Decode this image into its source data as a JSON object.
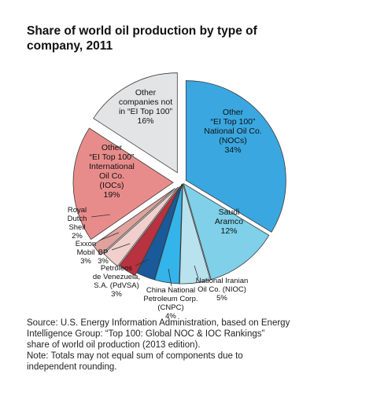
{
  "title_lines": [
    "Share of world oil production by type of",
    "company, 2011"
  ],
  "chart_data": {
    "type": "pie",
    "title": "Share of world oil production by type of company, 2011",
    "slices": [
      {
        "label_lines": [
          "Other",
          "“EI Top 100”",
          "National Oil Co.",
          "(NOCs)",
          "34%"
        ],
        "label": "Other “EI Top 100” National Oil Co. (NOCs)",
        "value": 34,
        "color": "#3aa7e0"
      },
      {
        "label_lines": [
          "Saudi",
          "Aramco",
          "12%"
        ],
        "label": "Saudi Aramco",
        "value": 12,
        "color": "#7fd0e8"
      },
      {
        "label_lines": [
          "National Iranian",
          "Oil Co. (NIOC)",
          "5%"
        ],
        "label": "National Iranian Oil Co. (NIOC)",
        "value": 5,
        "color": "#b8e2ed"
      },
      {
        "label_lines": [
          "China National",
          "Petroleum Corp.",
          "(CNPC)",
          "4%"
        ],
        "label": "China National Petroleum Corp. (CNPC)",
        "value": 4,
        "color": "#33b4ea"
      },
      {
        "label_lines": [
          "Petróleos",
          "de Venezuela,",
          "S.A. (PdVSA)",
          "3%"
        ],
        "label": "Petróleos de Venezuela, S.A. (PdVSA)",
        "value": 3,
        "color": "#1a5a9a"
      },
      {
        "label_lines": [
          "BP",
          "3%"
        ],
        "label": "BP",
        "value": 3,
        "color": "#b8323f"
      },
      {
        "label_lines": [
          "Exxon",
          "Mobil",
          "3%"
        ],
        "label": "Exxon Mobil",
        "value": 3,
        "color": "#f0cfcc"
      },
      {
        "label_lines": [
          "Royal",
          "Dutch",
          "Shell",
          "2%"
        ],
        "label": "Royal Dutch Shell",
        "value": 2,
        "color": "#dfa29c"
      },
      {
        "label_lines": [
          "Other",
          "“EI Top 100”",
          "International",
          "Oil Co.",
          "(IOCs)",
          "19%"
        ],
        "label": "Other “EI Top 100” International Oil Co. (IOCs)",
        "value": 19,
        "color": "#e88c8b"
      },
      {
        "label_lines": [
          "Other",
          "companies not",
          "in “EI Top 100”",
          "16%"
        ],
        "label": "Other companies not in “EI Top 100”",
        "value": 16,
        "color": "#e3e4e5"
      }
    ]
  },
  "source_lines": [
    "Source: U.S. Energy Information Administration, based on Energy",
    "Intelligence Group: “Top 100: Global NOC & IOC Rankings”",
    "share of world oil production (2013 edition).",
    "Note: Totals may not equal sum of components due to",
    "independent rounding."
  ]
}
